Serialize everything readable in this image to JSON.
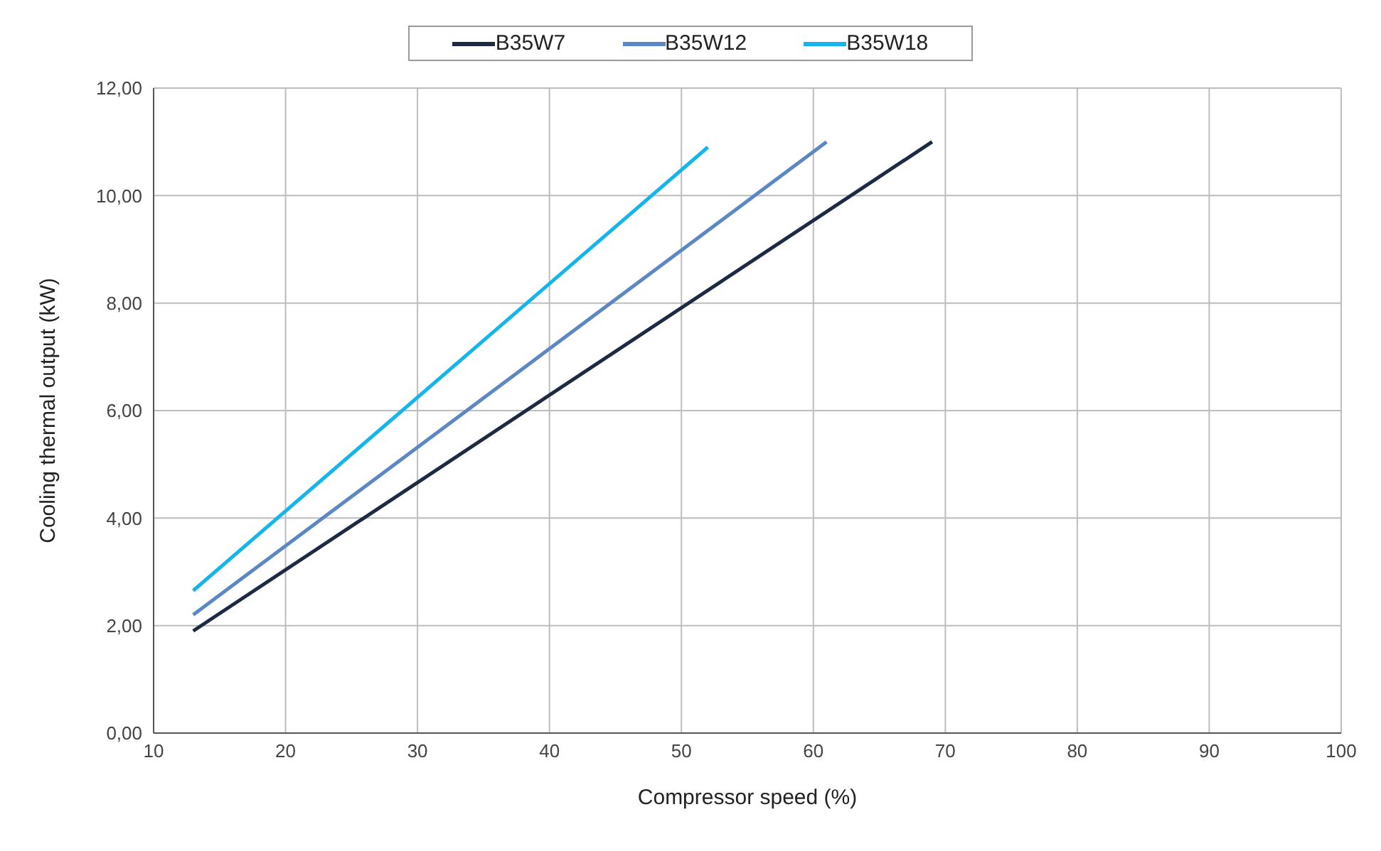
{
  "chart_data": {
    "type": "line",
    "xlabel": "Compressor speed (%)",
    "ylabel": "Cooling thermal output (kW)",
    "series": [
      {
        "name": "B35W7",
        "color": "#1c2a43",
        "x": [
          13,
          69
        ],
        "values": [
          1.9,
          11.0
        ]
      },
      {
        "name": "B35W12",
        "color": "#5b87c5",
        "x": [
          13,
          61
        ],
        "values": [
          2.2,
          11.0
        ]
      },
      {
        "name": "B35W18",
        "color": "#13b5ea",
        "x": [
          13,
          52
        ],
        "values": [
          2.65,
          10.9
        ]
      }
    ],
    "xlim": [
      10,
      100
    ],
    "xticks": [
      10,
      20,
      30,
      40,
      50,
      60,
      70,
      80,
      90,
      100
    ],
    "ylim": [
      0,
      12
    ],
    "yticks": [
      {
        "value": 0,
        "label": "0,00"
      },
      {
        "value": 2,
        "label": "2,00"
      },
      {
        "value": 4,
        "label": "4,00"
      },
      {
        "value": 6,
        "label": "6,00"
      },
      {
        "value": 8,
        "label": "8,00"
      },
      {
        "value": 10,
        "label": "10,00"
      },
      {
        "value": 12,
        "label": "12,00"
      }
    ],
    "grid": true,
    "legend": "top",
    "marker": "none",
    "line_style": "solid"
  }
}
